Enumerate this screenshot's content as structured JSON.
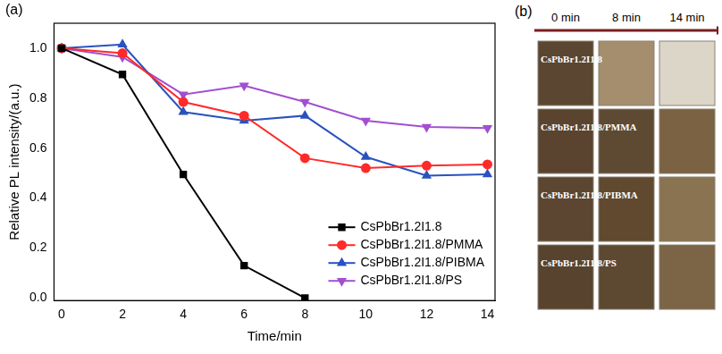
{
  "chart_data": {
    "type": "line",
    "panel": "(a)",
    "x_label": "Time/min",
    "y_label": "Relative PL intensity/(a.u.)",
    "x": [
      0,
      2,
      4,
      6,
      8,
      10,
      12,
      14
    ],
    "xlim": [
      -0.25,
      14.25
    ],
    "xticks": [
      0,
      2,
      4,
      6,
      8,
      10,
      12,
      14
    ],
    "ylim": [
      -0.01,
      1.1
    ],
    "yticks": [
      {
        "value": 0,
        "label": "0.0"
      },
      {
        "value": 0.2,
        "label": "0.2"
      },
      {
        "value": 0.4,
        "label": "0.4"
      },
      {
        "value": 0.6,
        "label": "0.6"
      },
      {
        "value": 0.8,
        "label": "0.8"
      },
      {
        "value": 1.0,
        "label": "1.0"
      }
    ],
    "grid": false,
    "legend": "lower right",
    "series": [
      {
        "name": "CsPbBr1.2I1.8",
        "color": "#000000",
        "marker": "square",
        "line_style": "solid",
        "values": [
          1.0,
          0.895,
          0.495,
          0.13,
          0.0,
          null,
          null,
          null
        ]
      },
      {
        "name": "CsPbBr1.2I1.8/PMMA",
        "color": "#ff2a2a",
        "marker": "circle",
        "line_style": "solid",
        "values": [
          1.0,
          0.98,
          0.785,
          0.73,
          0.56,
          0.52,
          0.53,
          0.535
        ]
      },
      {
        "name": "CsPbBr1.2I1.8/PIBMA",
        "color": "#2a52be",
        "marker": "triangle",
        "line_style": "solid",
        "values": [
          1.0,
          1.015,
          0.745,
          0.71,
          0.73,
          0.565,
          0.49,
          0.495
        ]
      },
      {
        "name": "CsPbBr1.2I1.8/PS",
        "color": "#a24fd0",
        "marker": "triangle_down",
        "line_style": "solid",
        "values": [
          1.0,
          0.965,
          0.815,
          0.85,
          0.785,
          0.71,
          0.685,
          0.68
        ]
      }
    ]
  },
  "photo": {
    "panel": "(b)",
    "columns": [
      "0 min",
      "8 min",
      "14 min"
    ],
    "rows": [
      {
        "label": "CsPbBr1.2I1.8",
        "colors": [
          "#5b4631",
          "#a48e6e",
          "#dcd6c8"
        ]
      },
      {
        "label": "CsPbBr1.2I1.8/PMMA",
        "colors": [
          "#5a4430",
          "#5e4a33",
          "#7a6242"
        ]
      },
      {
        "label": "CsPbBr1.2I1.8/PIBMA",
        "colors": [
          "#5c4632",
          "#60492f",
          "#8a7350"
        ]
      },
      {
        "label": "CsPbBr1.2I1.8/PS",
        "colors": [
          "#58432f",
          "#5d4832",
          "#7b6546"
        ]
      }
    ]
  }
}
